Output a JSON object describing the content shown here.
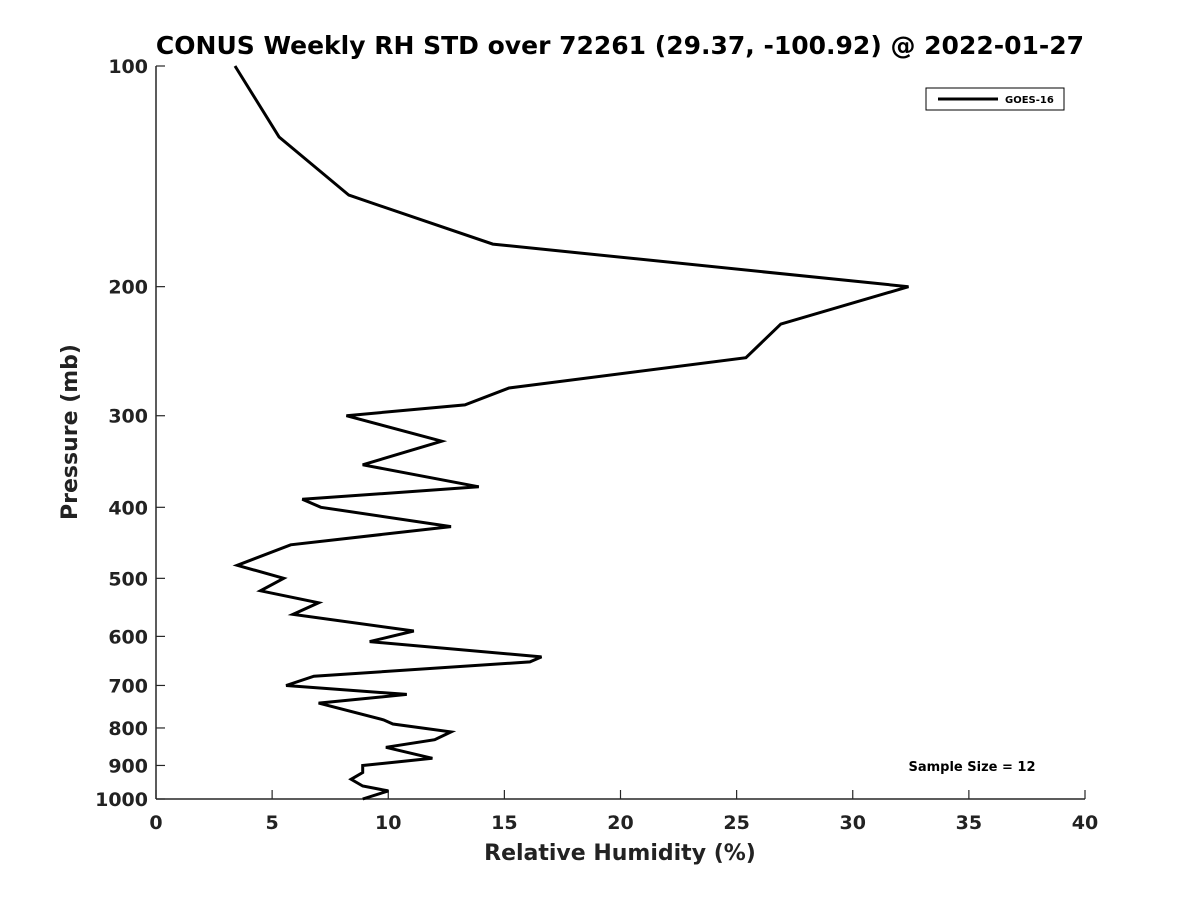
{
  "chart_data": {
    "type": "line",
    "title": "CONUS Weekly RH STD over 72261 (29.37, -100.92) @ 2022-01-27",
    "xlabel": "Relative Humidity (%)",
    "ylabel": "Pressure (mb)",
    "xlim": [
      0,
      40
    ],
    "ylim": [
      100,
      1000
    ],
    "y_scale": "log",
    "y_reversed": true,
    "grid": false,
    "legend_position": "top-right",
    "x_ticks": [
      0,
      5,
      10,
      15,
      20,
      25,
      30,
      35,
      40
    ],
    "x_tick_labels": [
      "0",
      "5",
      "10",
      "15",
      "20",
      "25",
      "30",
      "35",
      "40"
    ],
    "y_ticks": [
      100,
      200,
      300,
      400,
      500,
      600,
      700,
      800,
      900,
      1000
    ],
    "y_tick_labels": [
      "100",
      "200",
      "300",
      "400",
      "500",
      "600",
      "700",
      "800",
      "900",
      "1000"
    ],
    "annotations": [
      "Sample Size = 12"
    ],
    "series": [
      {
        "name": "GOES-16",
        "color": "#000000",
        "points": [
          [
            3.4,
            100
          ],
          [
            5.3,
            125
          ],
          [
            8.3,
            150
          ],
          [
            14.5,
            175
          ],
          [
            32.4,
            200
          ],
          [
            26.9,
            225
          ],
          [
            25.4,
            250
          ],
          [
            15.2,
            275
          ],
          [
            13.3,
            290
          ],
          [
            8.2,
            300
          ],
          [
            12.3,
            325
          ],
          [
            8.9,
            350
          ],
          [
            13.9,
            375
          ],
          [
            6.3,
            390
          ],
          [
            7.1,
            400
          ],
          [
            12.7,
            425
          ],
          [
            5.8,
            450
          ],
          [
            3.5,
            480
          ],
          [
            5.5,
            500
          ],
          [
            4.5,
            520
          ],
          [
            7.0,
            540
          ],
          [
            5.9,
            560
          ],
          [
            11.1,
            590
          ],
          [
            9.2,
            610
          ],
          [
            16.6,
            640
          ],
          [
            16.1,
            650
          ],
          [
            6.8,
            680
          ],
          [
            5.6,
            700
          ],
          [
            10.8,
            720
          ],
          [
            7.0,
            740
          ],
          [
            9.8,
            780
          ],
          [
            10.2,
            790
          ],
          [
            12.7,
            810
          ],
          [
            12.0,
            830
          ],
          [
            9.9,
            850
          ],
          [
            11.9,
            880
          ],
          [
            8.9,
            900
          ],
          [
            8.9,
            920
          ],
          [
            8.4,
            940
          ],
          [
            8.9,
            960
          ],
          [
            10.0,
            975
          ],
          [
            8.9,
            1000
          ]
        ]
      }
    ]
  }
}
